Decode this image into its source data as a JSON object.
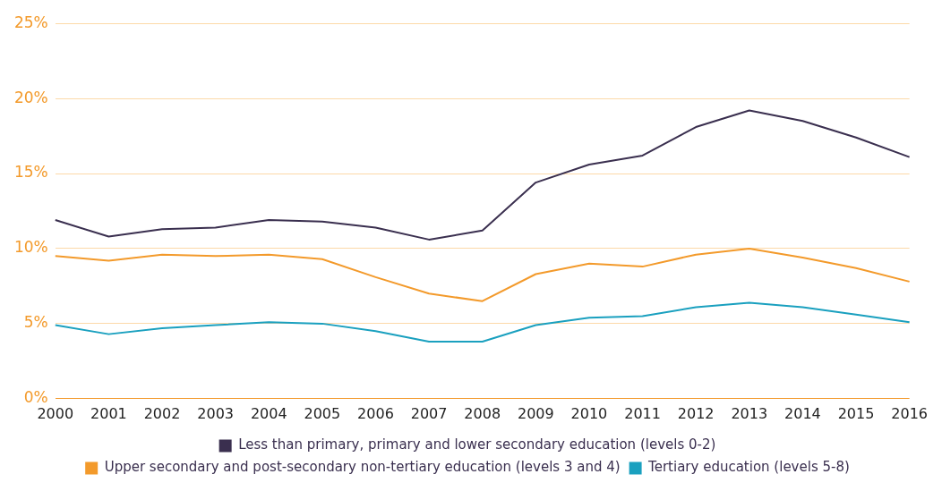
{
  "chart_data": {
    "type": "line",
    "categories": [
      "2000",
      "2001",
      "2002",
      "2003",
      "2004",
      "2005",
      "2006",
      "2007",
      "2008",
      "2009",
      "2010",
      "2011",
      "2012",
      "2013",
      "2014",
      "2015",
      "2016"
    ],
    "series": [
      {
        "name": "Less than primary, primary and lower secondary education (levels 0-2)",
        "color": "#3a2f4f",
        "values": [
          11.9,
          10.8,
          11.3,
          11.4,
          11.9,
          11.8,
          11.4,
          10.6,
          11.2,
          14.4,
          15.6,
          16.2,
          18.1,
          19.2,
          18.5,
          17.4,
          16.1
        ]
      },
      {
        "name": "Upper secondary and post-secondary non-tertiary education (levels 3 and 4)",
        "color": "#f39a2b",
        "values": [
          9.5,
          9.2,
          9.6,
          9.5,
          9.6,
          9.3,
          8.1,
          7.0,
          6.5,
          8.3,
          9.0,
          8.8,
          9.6,
          10.0,
          9.4,
          8.7,
          7.8
        ]
      },
      {
        "name": "Tertiary education (levels 5-8)",
        "color": "#1aa0bf",
        "values": [
          4.9,
          4.3,
          4.7,
          4.9,
          5.1,
          5.0,
          4.5,
          3.8,
          3.8,
          4.9,
          5.4,
          5.5,
          6.1,
          6.4,
          6.1,
          5.6,
          5.1
        ]
      }
    ],
    "ylim": [
      0,
      25
    ],
    "yticks": [
      {
        "value": 0,
        "label": "0%"
      },
      {
        "value": 5,
        "label": "5%"
      },
      {
        "value": 10,
        "label": "10%"
      },
      {
        "value": 15,
        "label": "15%"
      },
      {
        "value": 20,
        "label": "20%"
      },
      {
        "value": 25,
        "label": "25%"
      }
    ],
    "grid": "y",
    "legend": "bottom",
    "marker": "none",
    "line_style": "solid"
  }
}
